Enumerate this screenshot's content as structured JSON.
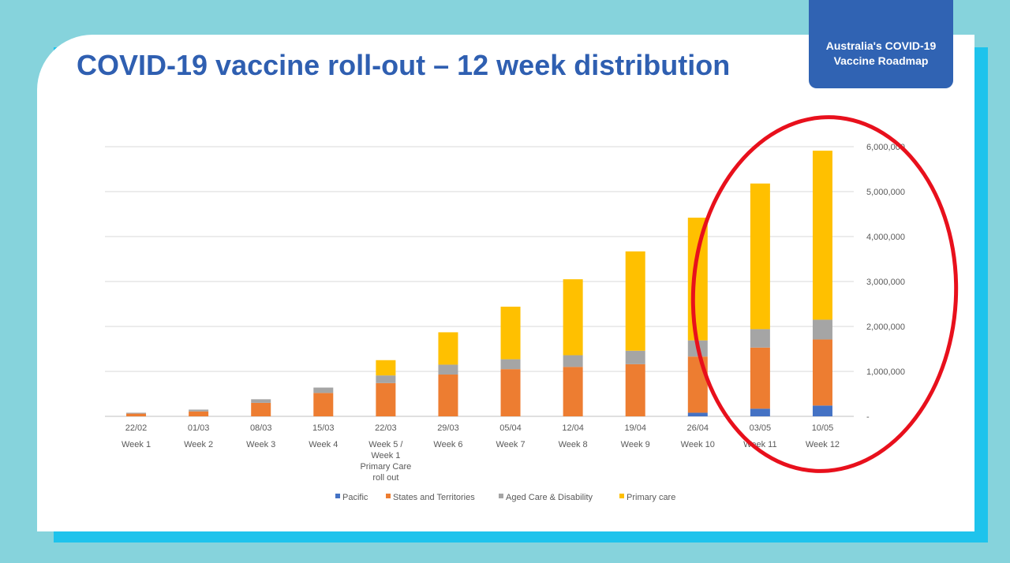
{
  "slide": {
    "title": "COVID-19 vaccine roll-out – 12 week distribution",
    "badge_line1": "Australia's COVID-19",
    "badge_line2": "Vaccine Roadmap"
  },
  "colors": {
    "background": "#86d3dc",
    "accent": "#1ec3ec",
    "title": "#2f5fb1",
    "badge": "#3063b3",
    "highlight_circle": "#e8101c"
  },
  "chart_data": {
    "type": "bar",
    "stacked": true,
    "title": "",
    "xlabel": "",
    "ylabel": "",
    "ylim": [
      0,
      6000000
    ],
    "yticks": [
      0,
      1000000,
      2000000,
      3000000,
      4000000,
      5000000,
      6000000
    ],
    "ytick_labels": [
      "-",
      "1,000,000",
      "2,000,000",
      "3,000,000",
      "4,000,000",
      "5,000,000",
      "6,000,000"
    ],
    "grid": true,
    "legend_position": "bottom",
    "categories": [
      {
        "date": "22/02",
        "week": [
          "Week 1"
        ]
      },
      {
        "date": "01/03",
        "week": [
          "Week 2"
        ]
      },
      {
        "date": "08/03",
        "week": [
          "Week 3"
        ]
      },
      {
        "date": "15/03",
        "week": [
          "Week 4"
        ]
      },
      {
        "date": "22/03",
        "week": [
          "Week 5 /",
          "Week 1",
          "Primary Care",
          "roll out"
        ]
      },
      {
        "date": "29/03",
        "week": [
          "Week 6"
        ]
      },
      {
        "date": "05/04",
        "week": [
          "Week 7"
        ]
      },
      {
        "date": "12/04",
        "week": [
          "Week 8"
        ]
      },
      {
        "date": "19/04",
        "week": [
          "Week 9"
        ]
      },
      {
        "date": "26/04",
        "week": [
          "Week 10"
        ]
      },
      {
        "date": "03/05",
        "week": [
          "Week 11"
        ]
      },
      {
        "date": "10/05",
        "week": [
          "Week 12"
        ]
      }
    ],
    "series": [
      {
        "name": "Pacific",
        "color": "#4472c4",
        "values": [
          0,
          0,
          0,
          0,
          0,
          0,
          0,
          0,
          0,
          80000,
          170000,
          240000
        ]
      },
      {
        "name": "States and Territories",
        "color": "#ed7d31",
        "values": [
          60000,
          110000,
          300000,
          520000,
          740000,
          930000,
          1050000,
          1100000,
          1160000,
          1250000,
          1360000,
          1470000
        ]
      },
      {
        "name": "Aged Care & Disability",
        "color": "#a5a5a5",
        "values": [
          20000,
          40000,
          80000,
          120000,
          170000,
          220000,
          220000,
          260000,
          300000,
          360000,
          410000,
          440000
        ]
      },
      {
        "name": "Primary care",
        "color": "#ffc000",
        "values": [
          0,
          0,
          0,
          0,
          340000,
          720000,
          1170000,
          1690000,
          2210000,
          2730000,
          3240000,
          3760000
        ]
      }
    ]
  }
}
